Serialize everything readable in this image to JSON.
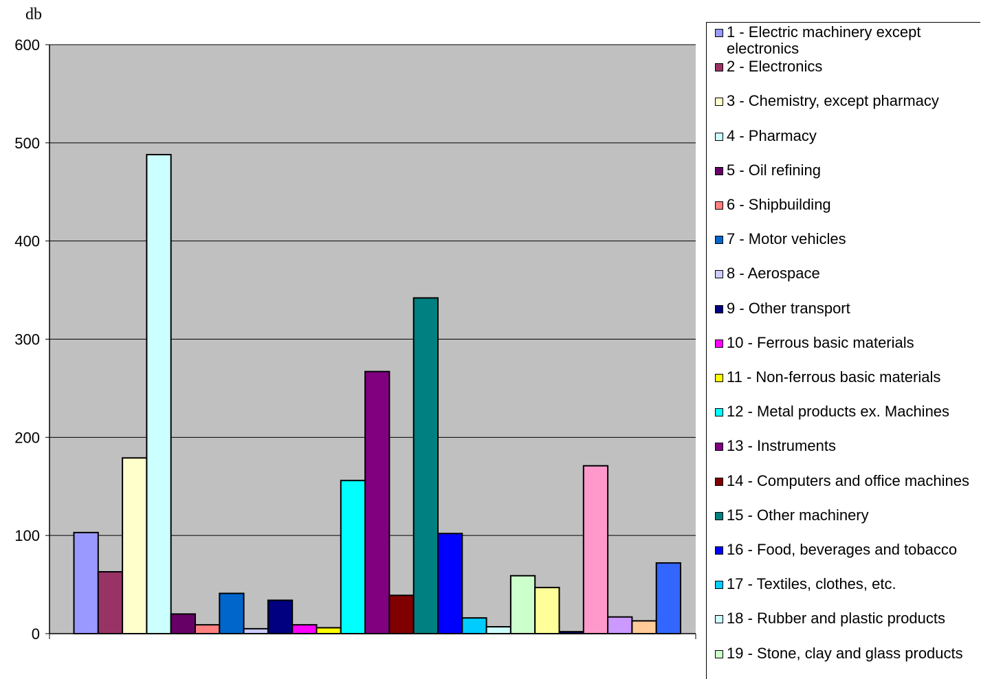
{
  "chart_data": {
    "type": "bar",
    "ylabel": "db",
    "ylim": [
      0,
      600
    ],
    "yticks": [
      0,
      100,
      200,
      300,
      400,
      500,
      600
    ],
    "plot_background": "#C0C0C0",
    "grid": true,
    "legend_position": "right",
    "series": [
      {
        "name": "1 - Electric machinery except electronics",
        "value": 103,
        "color": "#9999FF"
      },
      {
        "name": "2 - Electronics",
        "value": 63,
        "color": "#993366"
      },
      {
        "name": "3 - Chemistry, except pharmacy",
        "value": 179,
        "color": "#FFFFCC"
      },
      {
        "name": "4 - Pharmacy",
        "value": 488,
        "color": "#CCFFFF"
      },
      {
        "name": "5 - Oil refining",
        "value": 20,
        "color": "#660066"
      },
      {
        "name": "6 - Shipbuilding",
        "value": 9,
        "color": "#FF8080"
      },
      {
        "name": "7 - Motor vehicles",
        "value": 41,
        "color": "#0066CC"
      },
      {
        "name": "8 - Aerospace",
        "value": 5,
        "color": "#CCCCFF"
      },
      {
        "name": "9 - Other transport",
        "value": 34,
        "color": "#000080"
      },
      {
        "name": "10 - Ferrous basic materials",
        "value": 9,
        "color": "#FF00FF"
      },
      {
        "name": "11 - Non-ferrous basic materials",
        "value": 6,
        "color": "#FFFF00"
      },
      {
        "name": "12 - Metal products ex. Machines",
        "value": 156,
        "color": "#00FFFF"
      },
      {
        "name": "13 - Instruments",
        "value": 267,
        "color": "#800080"
      },
      {
        "name": "14 - Computers and office machines",
        "value": 39,
        "color": "#800000"
      },
      {
        "name": "15 - Other machinery",
        "value": 342,
        "color": "#008080"
      },
      {
        "name": "16 - Food, beverages and tobacco",
        "value": 102,
        "color": "#0000FF"
      },
      {
        "name": "17 - Textiles, clothes, etc.",
        "value": 16,
        "color": "#00CCFF"
      },
      {
        "name": "18 - Rubber and plastic products",
        "value": 7,
        "color": "#CCFFFF"
      },
      {
        "name": "19 - Stone, clay and glass products",
        "value": 59,
        "color": "#CCFFCC"
      },
      {
        "name": "",
        "value": 47,
        "color": "#FFFF99"
      },
      {
        "name": "",
        "value": 2,
        "color": "#000080"
      },
      {
        "name": "",
        "value": 171,
        "color": "#FF99CC"
      },
      {
        "name": "",
        "value": 17,
        "color": "#CC99FF"
      },
      {
        "name": "",
        "value": 13,
        "color": "#FFCC99"
      },
      {
        "name": "",
        "value": 72,
        "color": "#3366FF"
      }
    ]
  }
}
